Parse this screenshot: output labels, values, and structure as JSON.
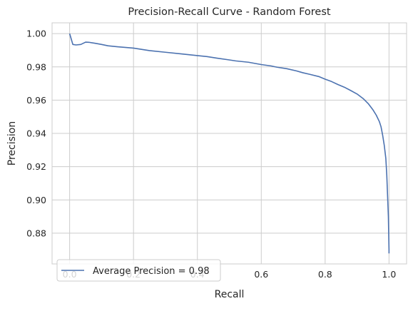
{
  "chart_data": {
    "type": "line",
    "title": "Precision-Recall Curve - Random Forest",
    "xlabel": "Recall",
    "ylabel": "Precision",
    "xlim": [
      -0.055,
      1.055
    ],
    "ylim": [
      0.8615,
      1.0065
    ],
    "xticks": [
      0.0,
      0.2,
      0.4,
      0.6,
      0.8,
      1.0
    ],
    "xtick_labels": [
      "0.0",
      "0.2",
      "0.4",
      "0.6",
      "0.8",
      "1.0"
    ],
    "yticks": [
      0.88,
      0.9,
      0.92,
      0.94,
      0.96,
      0.98,
      1.0
    ],
    "ytick_labels": [
      "0.88",
      "0.90",
      "0.92",
      "0.94",
      "0.96",
      "0.98",
      "1.00"
    ],
    "grid": true,
    "legend_position": "lower-left",
    "series": [
      {
        "name": "Average Precision = 0.98",
        "color": "#4c72b0",
        "x": [
          0.0,
          0.005,
          0.01,
          0.02,
          0.035,
          0.05,
          0.06,
          0.08,
          0.1,
          0.12,
          0.15,
          0.2,
          0.25,
          0.3,
          0.35,
          0.4,
          0.43,
          0.46,
          0.5,
          0.52,
          0.56,
          0.6,
          0.63,
          0.65,
          0.68,
          0.71,
          0.73,
          0.75,
          0.78,
          0.8,
          0.82,
          0.84,
          0.86,
          0.88,
          0.9,
          0.92,
          0.935,
          0.95,
          0.96,
          0.97,
          0.975,
          0.98,
          0.985,
          0.99,
          0.993,
          0.996,
          0.998,
          0.999,
          1.0,
          1.0
        ],
        "y": [
          1.0,
          0.9968,
          0.9935,
          0.9932,
          0.9935,
          0.9949,
          0.9948,
          0.9942,
          0.9935,
          0.9927,
          0.9921,
          0.9913,
          0.9898,
          0.9888,
          0.9878,
          0.9868,
          0.9862,
          0.9853,
          0.9842,
          0.9836,
          0.9828,
          0.9814,
          0.9806,
          0.9798,
          0.9789,
          0.9776,
          0.9765,
          0.9756,
          0.9742,
          0.9726,
          0.9712,
          0.9694,
          0.9678,
          0.9658,
          0.9637,
          0.9608,
          0.9579,
          0.9541,
          0.951,
          0.947,
          0.944,
          0.939,
          0.933,
          0.925,
          0.915,
          0.9,
          0.89,
          0.88,
          0.87,
          0.8678
        ]
      }
    ]
  }
}
